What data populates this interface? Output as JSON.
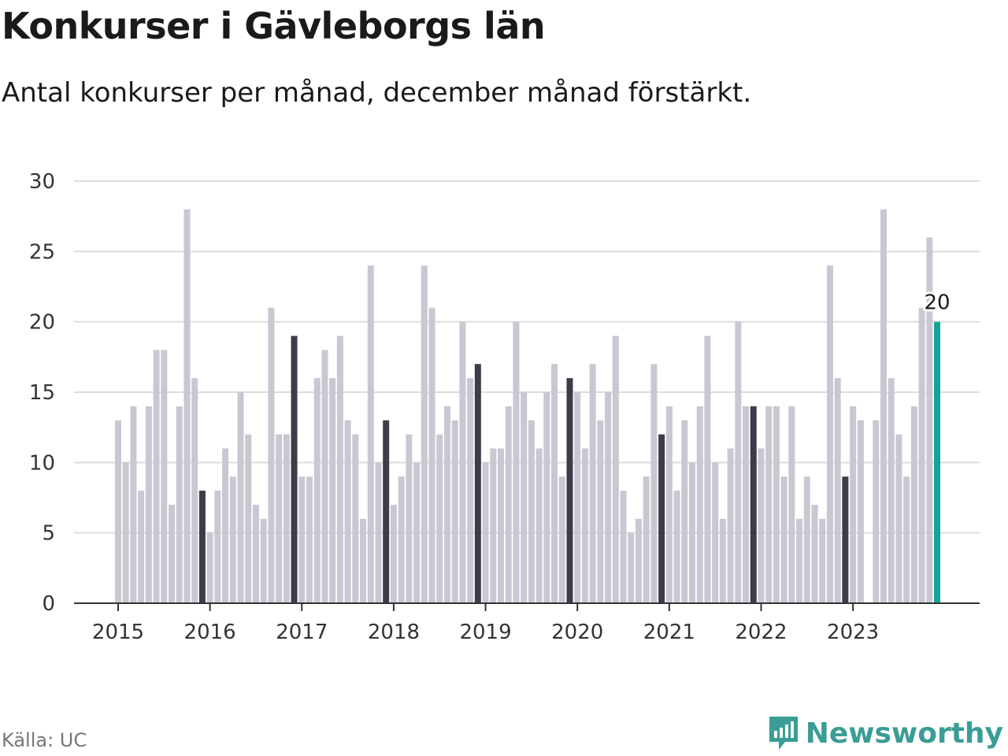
{
  "header": {
    "title": "Konkurser i Gävleborgs län",
    "subtitle": "Antal konkurser per månad, december månad förstärkt."
  },
  "footer": {
    "source": "Källa: UC",
    "brand": "Newsworthy",
    "brand_icon": "newsworthy-logo-icon"
  },
  "colors": {
    "regular": "#c8c8d2",
    "december": "#3d3d4a",
    "latest": "#14a394",
    "grid": "#dddddd",
    "axis": "#333333",
    "brand": "#3a9d96"
  },
  "chart_data": {
    "type": "bar",
    "title": "Konkurser i Gävleborgs län",
    "subtitle": "Antal konkurser per månad, december månad förstärkt.",
    "xlabel": "",
    "ylabel": "",
    "ylim": [
      0,
      30
    ],
    "yticks": [
      0,
      5,
      10,
      15,
      20,
      25,
      30
    ],
    "grid": true,
    "start": "2015-01",
    "year_ticks": [
      "2015",
      "2016",
      "2017",
      "2018",
      "2019",
      "2020",
      "2021",
      "2022",
      "2023"
    ],
    "values": [
      13,
      10,
      14,
      8,
      14,
      18,
      18,
      7,
      14,
      28,
      16,
      8,
      5,
      8,
      11,
      9,
      15,
      12,
      7,
      6,
      21,
      12,
      12,
      19,
      9,
      9,
      16,
      18,
      16,
      19,
      13,
      12,
      6,
      24,
      10,
      13,
      7,
      9,
      12,
      10,
      24,
      21,
      12,
      14,
      13,
      20,
      16,
      17,
      10,
      11,
      11,
      14,
      20,
      15,
      13,
      11,
      15,
      17,
      9,
      16,
      15,
      11,
      17,
      13,
      15,
      19,
      8,
      5,
      6,
      9,
      17,
      12,
      14,
      8,
      13,
      10,
      14,
      19,
      10,
      6,
      11,
      20,
      14,
      14,
      11,
      14,
      14,
      9,
      14,
      6,
      9,
      7,
      6,
      24,
      16,
      9,
      14,
      13,
      0,
      13,
      28,
      16,
      12,
      9,
      14,
      21,
      26,
      20
    ],
    "highlight": "december",
    "latest_label": "20"
  }
}
